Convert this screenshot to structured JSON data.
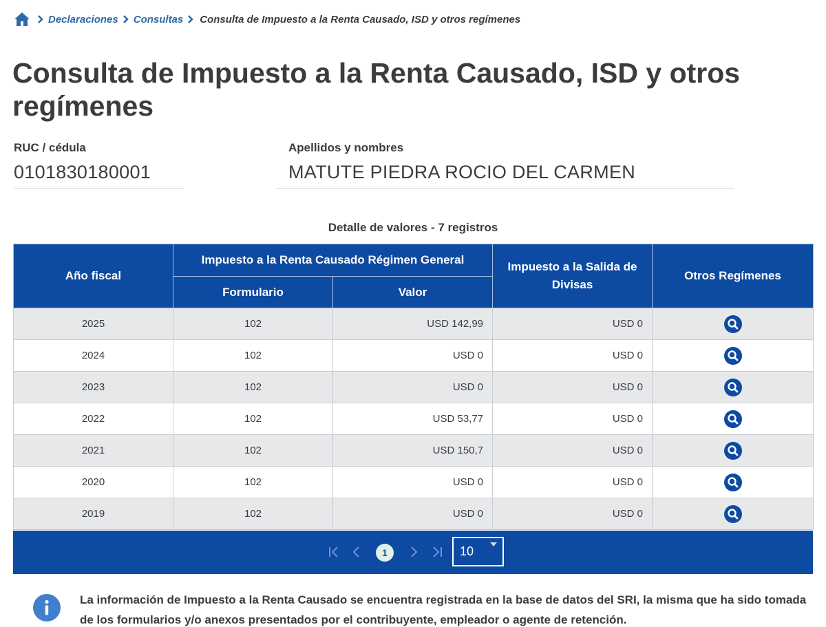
{
  "breadcrumb": {
    "items": [
      "Declaraciones",
      "Consultas"
    ],
    "current": "Consulta de Impuesto a la Renta Causado, ISD y otros regímenes"
  },
  "page": {
    "title": "Consulta de Impuesto a la Renta Causado, ISD y otros regímenes"
  },
  "taxpayer": {
    "ruc_label": "RUC / cédula",
    "ruc_value": "0101830180001",
    "name_label": "Apellidos y nombres",
    "name_value": "MATUTE PIEDRA ROCIO DEL CARMEN"
  },
  "table": {
    "caption": "Detalle de valores - 7 registros",
    "headers": {
      "fiscal_year": "Año fiscal",
      "income_tax_group": "Impuesto a la Renta Causado Régimen General",
      "form": "Formulario",
      "value": "Valor",
      "isd": "Impuesto a la Salida de Divisas",
      "other_regimes": "Otros Regímenes"
    },
    "rows": [
      {
        "year": "2025",
        "form": "102",
        "value": "USD 142,99",
        "isd": "USD 0"
      },
      {
        "year": "2024",
        "form": "102",
        "value": "USD 0",
        "isd": "USD 0"
      },
      {
        "year": "2023",
        "form": "102",
        "value": "USD 0",
        "isd": "USD 0"
      },
      {
        "year": "2022",
        "form": "102",
        "value": "USD 53,77",
        "isd": "USD 0"
      },
      {
        "year": "2021",
        "form": "102",
        "value": "USD 150,7",
        "isd": "USD 0"
      },
      {
        "year": "2020",
        "form": "102",
        "value": "USD 0",
        "isd": "USD 0"
      },
      {
        "year": "2019",
        "form": "102",
        "value": "USD 0",
        "isd": "USD 0"
      }
    ],
    "row_action_icon": "search-icon"
  },
  "pagination": {
    "current_page": "1",
    "page_size": "10",
    "icons": [
      "first-page-icon",
      "previous-page-icon",
      "next-page-icon",
      "last-page-icon"
    ]
  },
  "info": {
    "icon": "info-icon",
    "text": "La información de Impuesto a la Renta Causado se encuentra registrada en la base de datos del SRI, la misma que ha sido tomada de los formularios y/o anexos presentados por el contribuyente, empleador o agente de retención."
  },
  "colors": {
    "primary": "#0d4aa2",
    "link": "#2f6aa8",
    "text": "#3a3d40",
    "row_alt": "#e7e8ea"
  }
}
